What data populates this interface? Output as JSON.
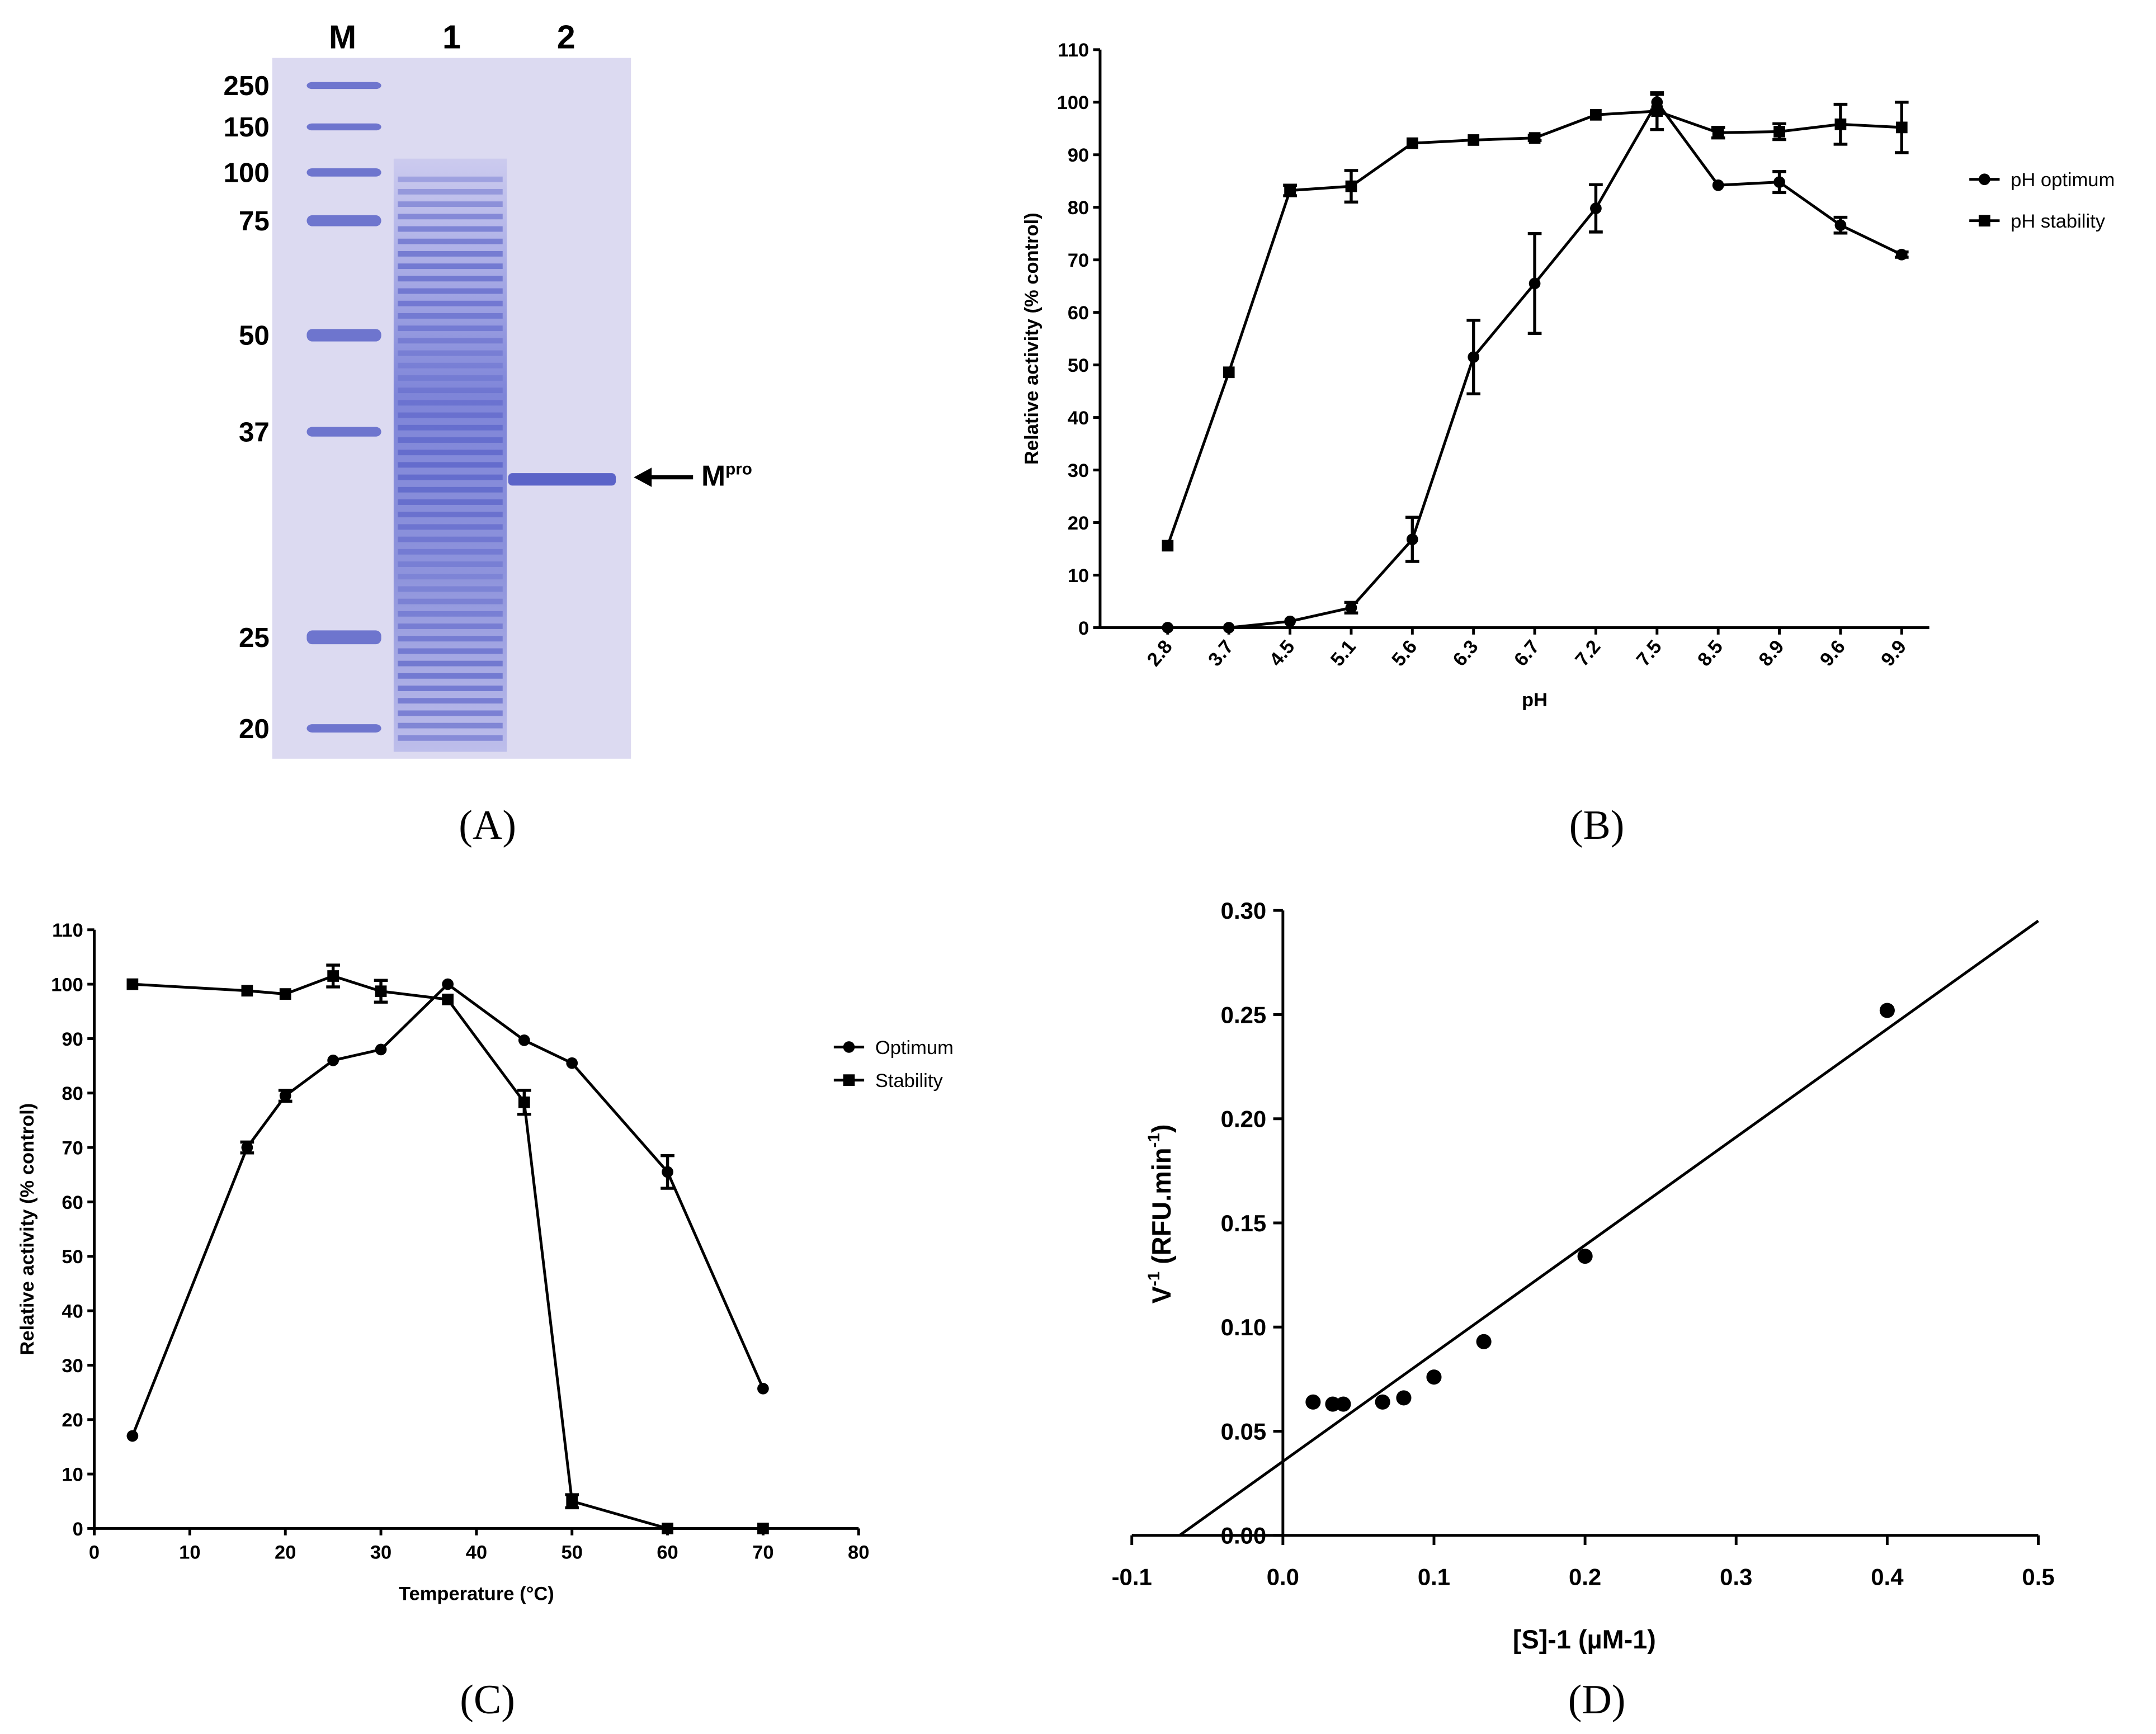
{
  "panels": {
    "A": {
      "caption": "(A)",
      "lane_labels": [
        "M",
        "1",
        "2"
      ],
      "mw_labels": [
        "250",
        "150",
        "100",
        "75",
        "50",
        "37",
        "25",
        "20"
      ],
      "band_label": "M",
      "band_label_sup": "pro",
      "colors": {
        "gel": "#dcdaf1",
        "band": "#5b63c8"
      }
    },
    "B": {
      "caption": "(B)"
    },
    "C": {
      "caption": "(C)"
    },
    "D": {
      "caption": "(D)"
    }
  },
  "chart_data": [
    {
      "id": "B",
      "type": "line",
      "xlabel": "pH",
      "ylabel": "Relative activity (% control)",
      "categories": [
        "2.8",
        "3.7",
        "4.5",
        "5.1",
        "5.6",
        "6.3",
        "6.7",
        "7.2",
        "7.5",
        "8.5",
        "8.9",
        "9.6",
        "9.9"
      ],
      "ylim": [
        0,
        110
      ],
      "yticks": [
        "0",
        "10",
        "20",
        "30",
        "40",
        "50",
        "60",
        "70",
        "80",
        "90",
        "100",
        "110"
      ],
      "legend_position": "right",
      "series": [
        {
          "name": "pH optimum",
          "marker": "circle",
          "values": [
            0,
            0,
            1.2,
            3.8,
            16.8,
            51.5,
            65.5,
            79.8,
            100,
            84.2,
            84.8,
            76.6,
            71
          ],
          "errors": [
            0,
            0,
            0,
            1,
            4.2,
            7,
            9.5,
            4.5,
            1.5,
            0,
            2,
            1.5,
            0.5
          ]
        },
        {
          "name": "pH stability",
          "marker": "square",
          "values": [
            15.6,
            48.6,
            83.2,
            84,
            92.2,
            92.8,
            93.2,
            97.6,
            98.3,
            94.2,
            94.4,
            95.8,
            95.2
          ],
          "errors": [
            0,
            0,
            1,
            3,
            0,
            0,
            0.5,
            0,
            3.5,
            1,
            1.5,
            3.8,
            4.8
          ]
        }
      ]
    },
    {
      "id": "C",
      "type": "line",
      "xlabel": "Temperature (°C)",
      "ylabel": "Relative activity (% control)",
      "xlim": [
        0,
        80
      ],
      "xticks": [
        "0",
        "10",
        "20",
        "30",
        "40",
        "50",
        "60",
        "70",
        "80"
      ],
      "ylim": [
        0,
        110
      ],
      "yticks": [
        "0",
        "10",
        "20",
        "30",
        "40",
        "50",
        "60",
        "70",
        "80",
        "90",
        "100",
        "110"
      ],
      "legend_position": "right",
      "series": [
        {
          "name": "Optimum",
          "marker": "circle",
          "x": [
            4,
            16,
            20,
            25,
            30,
            37,
            45,
            50,
            60,
            70
          ],
          "values": [
            17,
            70,
            79.5,
            86,
            88,
            100,
            89.7,
            85.5,
            65.5,
            25.7
          ],
          "errors": [
            0,
            1,
            1,
            0,
            0,
            0,
            0,
            0,
            3,
            0
          ]
        },
        {
          "name": "Stability",
          "marker": "square",
          "x": [
            4,
            16,
            20,
            25,
            30,
            37,
            45,
            50,
            60,
            70
          ],
          "values": [
            100,
            98.8,
            98.2,
            101.5,
            98.7,
            97.2,
            78.3,
            5,
            0,
            0
          ],
          "errors": [
            0,
            0,
            0,
            2,
            2,
            0,
            2.2,
            1.2,
            0,
            0
          ]
        }
      ]
    },
    {
      "id": "D",
      "type": "scatter",
      "xlabel": "[S]-1 (µM-1)",
      "xlabel_parts": [
        "[S]",
        "-1",
        " (µM",
        "-1",
        ")"
      ],
      "ylabel_parts": [
        "V",
        "-1",
        " (RFU.min",
        "-1",
        ")"
      ],
      "xlim": [
        -0.1,
        0.5
      ],
      "xticks": [
        "-0.1",
        "0.0",
        "0.1",
        "0.2",
        "0.3",
        "0.4",
        "0.5"
      ],
      "ylim": [
        0,
        0.3
      ],
      "yticks": [
        "0.00",
        "0.05",
        "0.10",
        "0.15",
        "0.20",
        "0.25",
        "0.30"
      ],
      "points": [
        [
          0.02,
          0.064
        ],
        [
          0.033,
          0.063
        ],
        [
          0.04,
          0.063
        ],
        [
          0.066,
          0.064
        ],
        [
          0.08,
          0.066
        ],
        [
          0.1,
          0.076
        ],
        [
          0.133,
          0.093
        ],
        [
          0.2,
          0.134
        ],
        [
          0.4,
          0.252
        ]
      ],
      "fit_line": {
        "slope": 0.519,
        "intercept": 0.0355,
        "x_range": [
          -0.068,
          0.5
        ]
      }
    }
  ]
}
